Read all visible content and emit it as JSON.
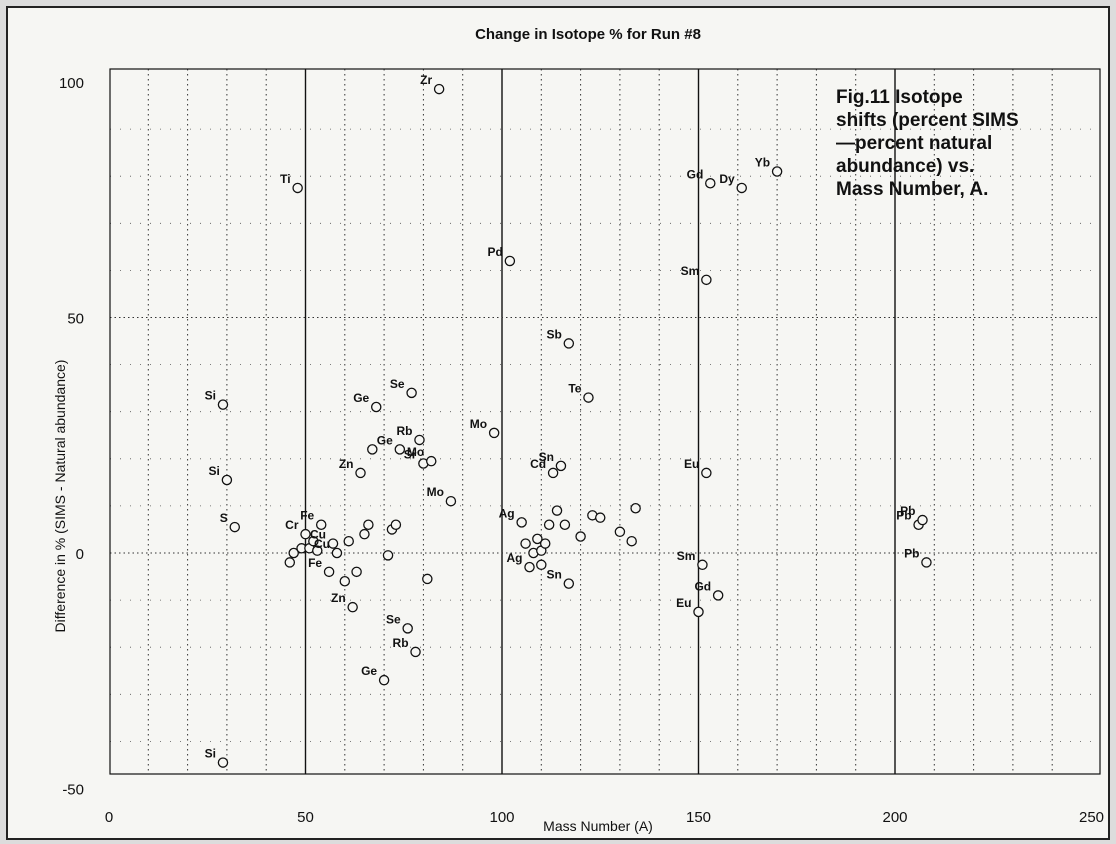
{
  "chart_data": {
    "type": "scatter",
    "title": "Change in Isotope % for Run #8",
    "xlabel": "Mass Number (A)",
    "ylabel": "Difference in % (SIMS - Natural abundance)",
    "xlim": [
      0,
      250
    ],
    "ylim": [
      -50,
      100
    ],
    "x_ticks": [
      0,
      50,
      100,
      150,
      200,
      250
    ],
    "y_ticks": [
      100,
      50,
      0,
      -50
    ],
    "grid": true,
    "annotation": [
      "Fig.11  Isotope",
      "shifts (percent SIMS",
      "—percent natural",
      "abundance) vs.",
      "Mass Number, A."
    ],
    "points": [
      {
        "x": 29,
        "y": -44.5,
        "label": "Si"
      },
      {
        "x": 29,
        "y": 31.5,
        "label": "Si"
      },
      {
        "x": 30,
        "y": 15.5,
        "label": "Si"
      },
      {
        "x": 32,
        "y": 5.5,
        "label": "S"
      },
      {
        "x": 46,
        "y": -2
      },
      {
        "x": 47,
        "y": 0
      },
      {
        "x": 48,
        "y": 77.5,
        "label": "Ti"
      },
      {
        "x": 49,
        "y": 1
      },
      {
        "x": 50,
        "y": 4,
        "label": "Cr"
      },
      {
        "x": 51,
        "y": 1
      },
      {
        "x": 52,
        "y": 2.5
      },
      {
        "x": 53,
        "y": 0.5
      },
      {
        "x": 54,
        "y": 6,
        "label": "Fe"
      },
      {
        "x": 56,
        "y": -4,
        "label": "Fe"
      },
      {
        "x": 57,
        "y": 2,
        "label": "Cu"
      },
      {
        "x": 58,
        "y": 0,
        "label": "Cu"
      },
      {
        "x": 60,
        "y": -6
      },
      {
        "x": 61,
        "y": 2.5
      },
      {
        "x": 62,
        "y": -11.5,
        "label": "Zn"
      },
      {
        "x": 63,
        "y": -4
      },
      {
        "x": 64,
        "y": 17,
        "label": "Zn"
      },
      {
        "x": 65,
        "y": 4
      },
      {
        "x": 66,
        "y": 6
      },
      {
        "x": 67,
        "y": 22
      },
      {
        "x": 68,
        "y": 31,
        "label": "Ge"
      },
      {
        "x": 70,
        "y": -27,
        "label": "Ge"
      },
      {
        "x": 71,
        "y": -0.5
      },
      {
        "x": 72,
        "y": 5
      },
      {
        "x": 73,
        "y": 6
      },
      {
        "x": 74,
        "y": 22,
        "label": "Ge"
      },
      {
        "x": 76,
        "y": -16,
        "label": "Se"
      },
      {
        "x": 77,
        "y": 34,
        "label": "Se"
      },
      {
        "x": 78,
        "y": -21,
        "label": "Rb"
      },
      {
        "x": 79,
        "y": 24,
        "label": "Rb"
      },
      {
        "x": 80,
        "y": 19,
        "label": "Sr"
      },
      {
        "x": 81,
        "y": -5.5
      },
      {
        "x": 82,
        "y": 19.5,
        "label": "Mo"
      },
      {
        "x": 84,
        "y": 98.5,
        "label": "Zr"
      },
      {
        "x": 87,
        "y": 11,
        "label": "Mo"
      },
      {
        "x": 98,
        "y": 25.5,
        "label": "Mo"
      },
      {
        "x": 102,
        "y": 62,
        "label": "Pd"
      },
      {
        "x": 105,
        "y": 6.5,
        "label": "Ag"
      },
      {
        "x": 106,
        "y": 2
      },
      {
        "x": 107,
        "y": -3,
        "label": "Ag"
      },
      {
        "x": 108,
        "y": 0
      },
      {
        "x": 109,
        "y": 3
      },
      {
        "x": 110,
        "y": -2.5
      },
      {
        "x": 110,
        "y": 0.5
      },
      {
        "x": 111,
        "y": 2
      },
      {
        "x": 112,
        "y": 6
      },
      {
        "x": 113,
        "y": 17,
        "label": "Cd"
      },
      {
        "x": 114,
        "y": 9
      },
      {
        "x": 115,
        "y": 18.5,
        "label": "Sn"
      },
      {
        "x": 116,
        "y": 6
      },
      {
        "x": 117,
        "y": -6.5,
        "label": "Sn"
      },
      {
        "x": 117,
        "y": 44.5,
        "label": "Sb"
      },
      {
        "x": 120,
        "y": 3.5
      },
      {
        "x": 122,
        "y": 33,
        "label": "Te"
      },
      {
        "x": 123,
        "y": 8
      },
      {
        "x": 125,
        "y": 7.5
      },
      {
        "x": 130,
        "y": 4.5
      },
      {
        "x": 133,
        "y": 2.5
      },
      {
        "x": 134,
        "y": 9.5
      },
      {
        "x": 150,
        "y": -12.5,
        "label": "Eu"
      },
      {
        "x": 151,
        "y": -2.5,
        "label": "Sm"
      },
      {
        "x": 152,
        "y": 17,
        "label": "Eu"
      },
      {
        "x": 152,
        "y": 58,
        "label": "Sm"
      },
      {
        "x": 153,
        "y": 78.5,
        "label": "Gd"
      },
      {
        "x": 155,
        "y": -9,
        "label": "Gd"
      },
      {
        "x": 161,
        "y": 77.5,
        "label": "Dy"
      },
      {
        "x": 170,
        "y": 81,
        "label": "Yb"
      },
      {
        "x": 206,
        "y": 6,
        "label": "Pb"
      },
      {
        "x": 207,
        "y": 7,
        "label": "Pb"
      },
      {
        "x": 208,
        "y": -2,
        "label": "Pb"
      }
    ]
  }
}
